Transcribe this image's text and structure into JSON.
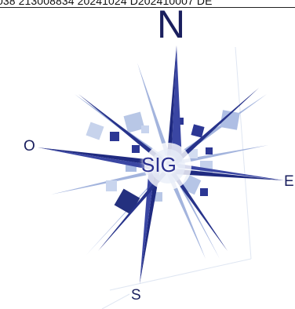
{
  "header_text": "038 213008834 20241024 D202410007 DE",
  "compass": {
    "north": "N",
    "west": "O",
    "east": "E",
    "south": "S",
    "center_text": "SIG"
  },
  "colors": {
    "navy": "#1f2a80",
    "light_blue": "#8fa6d8",
    "pale_blue": "#c9d7ee"
  }
}
